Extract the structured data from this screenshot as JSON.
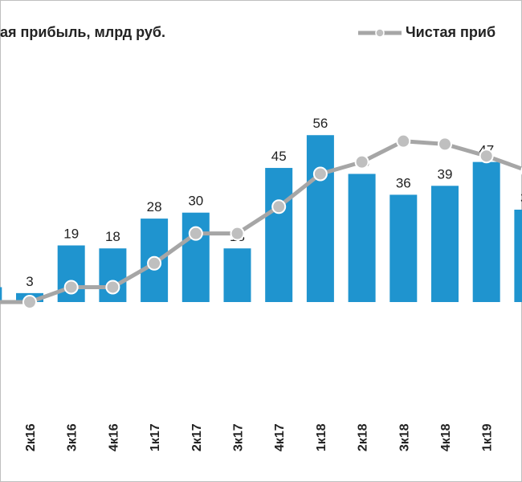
{
  "chart_data": {
    "type": "bar-line",
    "legend_bar_text": "ая прибыль, млрд руб.",
    "categories": [
      null,
      "2к16",
      "3к16",
      "4к16",
      "1к17",
      "2к17",
      "3к17",
      "4к17",
      "1к18",
      "2к18",
      "3к18",
      "4к18",
      "1к19",
      null
    ],
    "series": [
      {
        "name": "ая прибыль, млрд руб.",
        "type": "bar",
        "color": "#1f94cf",
        "values": [
          5,
          3,
          19,
          18,
          28,
          30,
          18,
          45,
          56,
          43,
          36,
          39,
          47,
          31
        ]
      },
      {
        "name": "Чистая приб",
        "type": "line",
        "color": "#a6a6a6",
        "values": [
          0,
          0,
          5,
          5,
          13,
          23,
          23,
          32,
          43,
          47,
          54,
          53,
          49,
          44
        ]
      }
    ]
  }
}
